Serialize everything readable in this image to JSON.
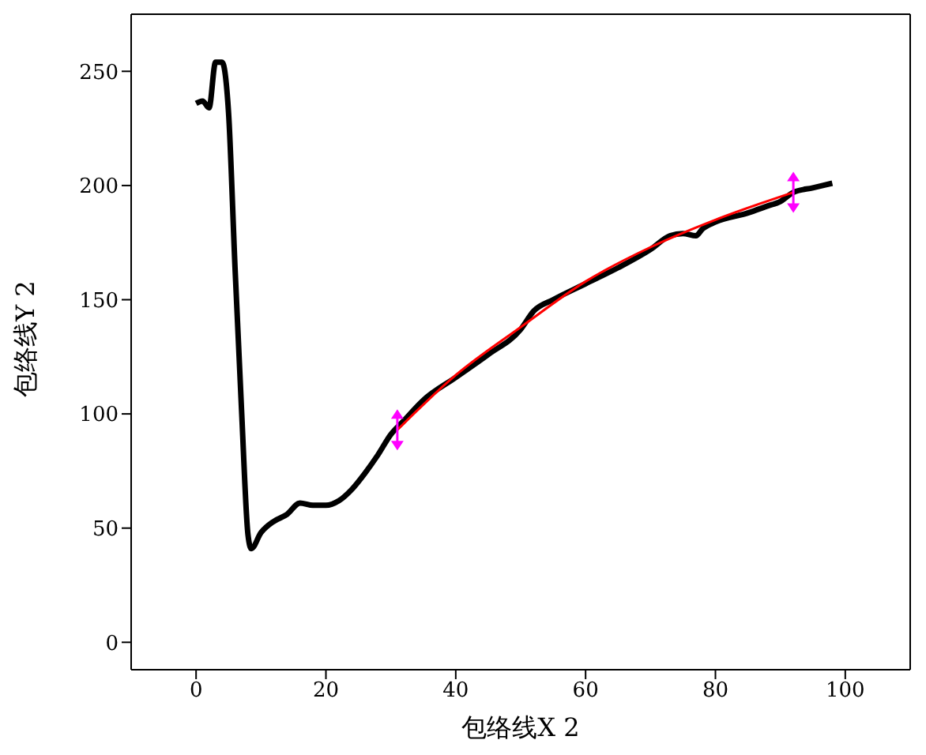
{
  "chart_data": {
    "type": "line",
    "xlabel": "包络线X 2",
    "ylabel": "包络线Y 2",
    "xlim": [
      -10,
      110
    ],
    "xticks": [
      0,
      20,
      40,
      60,
      80,
      100
    ],
    "ylim": [
      -12,
      275
    ],
    "yticks": [
      0,
      50,
      100,
      150,
      200,
      250
    ],
    "marker": "none",
    "line_style": "solid",
    "series": [
      {
        "color": "#000000",
        "x": [
          0,
          1,
          2,
          3,
          4,
          5,
          6,
          7,
          8,
          8.5,
          10,
          12,
          14,
          16,
          18,
          20,
          22,
          24,
          26,
          28,
          30,
          32,
          35,
          40,
          45,
          50,
          52,
          55,
          60,
          65,
          70,
          73,
          75,
          77,
          78,
          80,
          85,
          88,
          90,
          92,
          95,
          98
        ],
        "values": [
          236,
          237,
          234,
          254,
          254,
          232,
          164,
          102,
          47,
          41,
          48,
          53,
          56,
          61,
          60,
          60,
          62,
          67,
          74,
          82,
          91,
          97,
          106,
          116,
          126,
          137,
          145,
          150,
          157,
          164,
          172,
          178,
          179,
          178,
          181,
          184,
          188,
          191,
          193,
          197,
          199,
          201
        ]
      },
      {
        "color": "#ff0000",
        "x": [
          31,
          40,
          50,
          60,
          70,
          80,
          92
        ],
        "values": [
          93,
          117,
          138,
          158,
          173,
          185,
          197
        ]
      }
    ]
  }
}
